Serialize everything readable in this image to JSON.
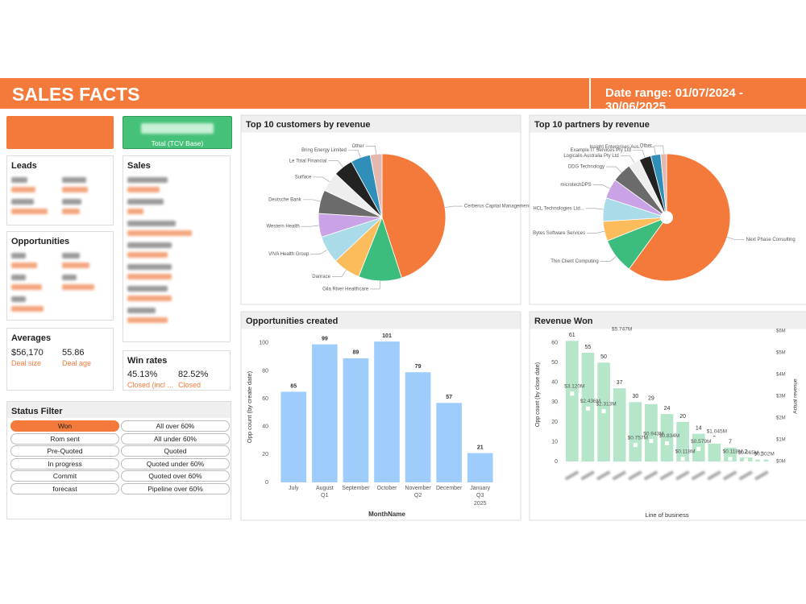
{
  "header": {
    "title": "SALES FACTS",
    "date_range": "Date range: 01/07/2024 - 30/06/2025"
  },
  "kpi": {
    "total_label": "Total (TCV Base)"
  },
  "cards": {
    "leads_title": "Leads",
    "opportunities_title": "Opportunities",
    "sales_title": "Sales"
  },
  "averages": {
    "title": "Averages",
    "deal_size": "$56,170",
    "deal_size_label": "Deal size",
    "deal_age": "55.86",
    "deal_age_label": "Deal age"
  },
  "win_rates": {
    "title": "Win rates",
    "closed_incl": "45.13%",
    "closed_incl_label": "Closed (incl ...",
    "closed": "82.52%",
    "closed_label": "Closed"
  },
  "status_filter": {
    "title": "Status Filter",
    "selected_index": 0,
    "options": [
      "Won",
      "All over 60%",
      "Rom sent",
      "All under 60%",
      "Pre-Quoted",
      "Quoted",
      "In progress",
      "Quoted under 60%",
      "Commit",
      "Quoted over 60%",
      "forecast",
      "Pipeline over 60%"
    ]
  },
  "chart_data": [
    {
      "type": "pie",
      "title": "Top 10 customers by revenue",
      "labels": [
        "Cerberus Capital Management...",
        "Gila River Healthcare",
        "Danrace",
        "VIVA Health Group",
        "Western Health",
        "Deutsche Bank",
        "Surface",
        "Le Total Financial",
        "Bring Energy Limited",
        "Other"
      ],
      "values": [
        45,
        11,
        7,
        7,
        6,
        6,
        5,
        5,
        5,
        3
      ],
      "colors": [
        "#f47a3c",
        "#3dbd7d",
        "#fcbc5b",
        "#a9dbe9",
        "#c9a3e6",
        "#6b6b6b",
        "#eeeeee",
        "#222222",
        "#2f8fb8",
        "#e4b7b1"
      ]
    },
    {
      "type": "pie",
      "title": "Top 10 partners by revenue",
      "labels": [
        "Next Phase Consulting",
        "Thin Client Computing",
        "Bytes Software Services",
        "HCL Technologies Ltd...",
        "microtechDPS",
        "DDG Technology",
        "Logicalis Australia Pty Ltd",
        "Example IT Services Pty Ltd",
        "Insight Enterprises Aus...",
        "Other"
      ],
      "values": [
        60,
        9,
        5,
        6,
        5,
        5,
        3,
        3,
        2.5,
        1.5
      ],
      "colors": [
        "#f47a3c",
        "#3dbd7d",
        "#fcbc5b",
        "#a9dbe9",
        "#c9a3e6",
        "#6b6b6b",
        "#eeeeee",
        "#222222",
        "#2f8fb8",
        "#e4b7b1"
      ]
    },
    {
      "type": "bar",
      "title": "Opportunities created",
      "categories": [
        "July",
        "August",
        "September",
        "October",
        "November",
        "December",
        "January"
      ],
      "quarters": [
        null,
        "Q1",
        null,
        null,
        "Q2",
        null,
        "Q3"
      ],
      "years": [
        null,
        null,
        null,
        null,
        null,
        null,
        "2025"
      ],
      "values": [
        65,
        99,
        89,
        101,
        79,
        57,
        21
      ],
      "color": "#9fcdfb",
      "ylim": [
        0,
        108
      ],
      "yticks": [
        0,
        20,
        40,
        60,
        80,
        100
      ],
      "xlabel": "MonthName",
      "ylabel": "Opp count (by create date)"
    },
    {
      "type": "bar_line",
      "title": "Revenue Won",
      "categories": [
        null,
        null,
        null,
        null,
        null,
        null,
        null,
        null,
        null,
        null,
        null,
        null,
        null
      ],
      "series": [
        {
          "color": "#b5e6c9",
          "values": [
            61,
            55,
            50,
            37,
            30,
            29,
            24,
            20,
            14,
            9,
            7,
            2,
            1
          ]
        },
        {
          "color": "#ffffff",
          "axis": "y2",
          "values": [
            3.12,
            2.436,
            2.313,
            5.747,
            0.757,
            0.943,
            0.834,
            0.118,
            0.579,
            1.045,
            0.118,
            0.065,
            0.002
          ],
          "value_labels": [
            "$3.120M",
            "$2.436M",
            "$2.313M",
            "$5.747M",
            "$0.757M",
            "$0.943M",
            "$0.834M",
            "$0.118M",
            "$0.579M",
            "$1.045M",
            "$0.118M",
            "$0.065M",
            "$0.002M"
          ]
        }
      ],
      "ylim": [
        0,
        66
      ],
      "yticks": [
        0,
        10,
        20,
        30,
        40,
        50,
        60
      ],
      "y2lim": [
        0,
        6
      ],
      "y2ticks": [
        {
          "value": 0,
          "label": "$0M"
        },
        {
          "value": 1,
          "label": "$1M"
        },
        {
          "value": 2,
          "label": "$2M"
        },
        {
          "value": 3,
          "label": "$3M"
        },
        {
          "value": 4,
          "label": "$4M"
        },
        {
          "value": 5,
          "label": "$5M"
        },
        {
          "value": 6,
          "label": "$6M"
        }
      ],
      "xlabel": "Line of business",
      "ylabel": "Opp count (by close date)",
      "y2label": "Actual revenue"
    }
  ]
}
